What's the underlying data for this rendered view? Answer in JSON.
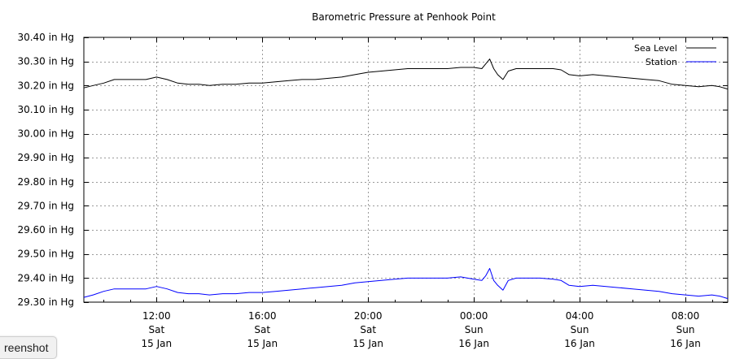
{
  "chart_data": {
    "type": "line",
    "title": "Barometric Pressure at Penhook Point",
    "xlabel": "",
    "ylabel": "",
    "unit": "in Hg",
    "x_unit": "hours since Sat 15 Jan 00:00",
    "xlim": [
      9.25,
      33.6
    ],
    "ylim": [
      29.3,
      30.4
    ],
    "yticks": [
      30.4,
      30.3,
      30.2,
      30.1,
      30.0,
      29.9,
      29.8,
      29.7,
      29.6,
      29.5,
      29.4,
      29.3
    ],
    "ytick_labels": [
      "30.40 in Hg",
      "30.30 in Hg",
      "30.20 in Hg",
      "30.10 in Hg",
      "30.00 in Hg",
      "29.90 in Hg",
      "29.80 in Hg",
      "29.70 in Hg",
      "29.60 in Hg",
      "29.50 in Hg",
      "29.40 in Hg",
      "29.30 in Hg"
    ],
    "xticks": [
      {
        "x": 12,
        "time": "12:00",
        "day": "Sat",
        "date": "15 Jan"
      },
      {
        "x": 16,
        "time": "16:00",
        "day": "Sat",
        "date": "15 Jan"
      },
      {
        "x": 20,
        "time": "20:00",
        "day": "Sat",
        "date": "15 Jan"
      },
      {
        "x": 24,
        "time": "00:00",
        "day": "Sun",
        "date": "16 Jan"
      },
      {
        "x": 28,
        "time": "04:00",
        "day": "Sun",
        "date": "16 Jan"
      },
      {
        "x": 32,
        "time": "08:00",
        "day": "Sun",
        "date": "16 Jan"
      }
    ],
    "grid": true,
    "legend_position": "top-right",
    "series": [
      {
        "name": "Sea Level",
        "color": "#000000",
        "x": [
          9.25,
          9.6,
          10.0,
          10.4,
          10.8,
          11.2,
          11.6,
          12.0,
          12.4,
          12.8,
          13.2,
          13.6,
          14.0,
          14.5,
          15.0,
          15.5,
          16.0,
          16.5,
          17.0,
          17.5,
          18.0,
          18.5,
          19.0,
          19.5,
          20.0,
          20.5,
          21.0,
          21.5,
          22.0,
          22.5,
          23.0,
          23.5,
          24.0,
          24.3,
          24.45,
          24.6,
          24.75,
          24.9,
          25.1,
          25.3,
          25.6,
          26.0,
          26.5,
          27.0,
          27.3,
          27.6,
          28.0,
          28.5,
          29.0,
          29.5,
          30.0,
          30.5,
          31.0,
          31.5,
          32.0,
          32.5,
          33.0,
          33.3,
          33.6
        ],
        "values": [
          30.19,
          30.2,
          30.21,
          30.225,
          30.225,
          30.225,
          30.225,
          30.235,
          30.225,
          30.21,
          30.205,
          30.205,
          30.2,
          30.205,
          30.205,
          30.21,
          30.21,
          30.215,
          30.22,
          30.225,
          30.225,
          30.23,
          30.235,
          30.245,
          30.255,
          30.26,
          30.265,
          30.27,
          30.27,
          30.27,
          30.27,
          30.275,
          30.275,
          30.27,
          30.29,
          30.31,
          30.27,
          30.245,
          30.225,
          30.26,
          30.27,
          30.27,
          30.27,
          30.27,
          30.265,
          30.245,
          30.24,
          30.245,
          30.24,
          30.235,
          30.23,
          30.225,
          30.22,
          30.205,
          30.2,
          30.195,
          30.2,
          30.195,
          30.185
        ]
      },
      {
        "name": "Station",
        "color": "#0000ff",
        "x": [
          9.25,
          9.6,
          10.0,
          10.4,
          10.8,
          11.2,
          11.6,
          12.0,
          12.4,
          12.8,
          13.2,
          13.6,
          14.0,
          14.5,
          15.0,
          15.5,
          16.0,
          16.5,
          17.0,
          17.5,
          18.0,
          18.5,
          19.0,
          19.5,
          20.0,
          20.5,
          21.0,
          21.5,
          22.0,
          22.5,
          23.0,
          23.5,
          24.0,
          24.3,
          24.45,
          24.6,
          24.75,
          24.9,
          25.1,
          25.3,
          25.6,
          26.0,
          26.5,
          27.0,
          27.3,
          27.6,
          28.0,
          28.5,
          29.0,
          29.5,
          30.0,
          30.5,
          31.0,
          31.5,
          32.0,
          32.5,
          33.0,
          33.3,
          33.6
        ],
        "values": [
          29.32,
          29.33,
          29.345,
          29.355,
          29.355,
          29.355,
          29.355,
          29.365,
          29.355,
          29.34,
          29.335,
          29.335,
          29.33,
          29.335,
          29.335,
          29.34,
          29.34,
          29.345,
          29.35,
          29.355,
          29.36,
          29.365,
          29.37,
          29.38,
          29.385,
          29.39,
          29.395,
          29.4,
          29.4,
          29.4,
          29.4,
          29.405,
          29.395,
          29.39,
          29.41,
          29.44,
          29.39,
          29.37,
          29.35,
          29.39,
          29.4,
          29.4,
          29.4,
          29.395,
          29.39,
          29.37,
          29.365,
          29.37,
          29.365,
          29.36,
          29.355,
          29.35,
          29.345,
          29.335,
          29.33,
          29.325,
          29.33,
          29.325,
          29.315
        ]
      }
    ]
  },
  "ui": {
    "screenshot_badge": "reenshot"
  }
}
